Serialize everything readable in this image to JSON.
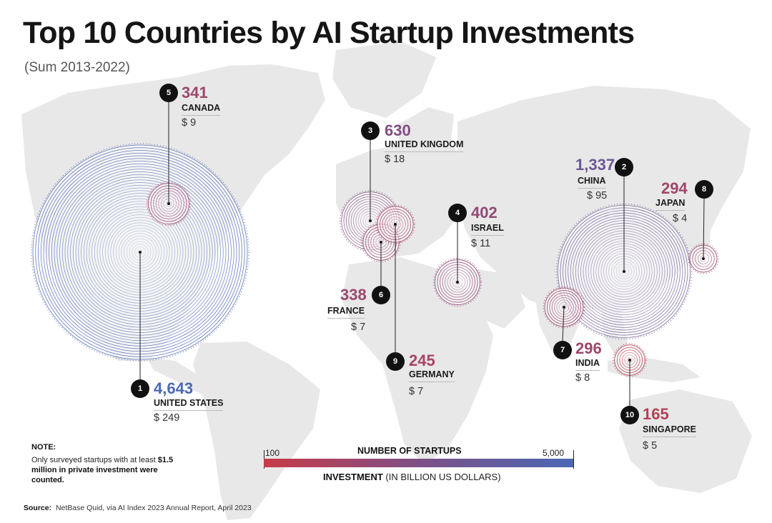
{
  "title": "Top 10 Countries by AI Startup Investments",
  "subtitle": "(Sum 2013-2022)",
  "note": {
    "title": "NOTE:",
    "text_plain": "Only surveyed startups with at least",
    "text_bold": "$1.5 million in private investment were counted."
  },
  "legend": {
    "title": "NUMBER OF STARTUPS",
    "min_label": "100",
    "max_label": "5,000",
    "sub_bold": "INVESTMENT",
    "sub_rest": "(IN BILLION US DOLLARS)",
    "color_min": "#c83b47",
    "color_max": "#4a69b4"
  },
  "source": {
    "label": "Source:",
    "text": "NetBase Quid, via AI Index 2023 Annual Report, April 2023"
  },
  "chart_data": {
    "type": "bubble-map",
    "title": "Top 10 Countries by AI Startup Investments",
    "subtitle": "(Sum 2013-2022)",
    "size_encodes": "investment (billion US dollars)",
    "color_encodes": "number of startups",
    "color_range": [
      100,
      5000
    ],
    "countries": [
      {
        "rank": "1",
        "name": "UNITED STATES",
        "startups": 4643,
        "startups_label": "4,643",
        "investment": 249,
        "investment_label": "$ 249"
      },
      {
        "rank": "2",
        "name": "CHINA",
        "startups": 1337,
        "startups_label": "1,337",
        "investment": 95,
        "investment_label": "$ 95"
      },
      {
        "rank": "3",
        "name": "UNITED KINGDOM",
        "startups": 630,
        "startups_label": "630",
        "investment": 18,
        "investment_label": "$ 18"
      },
      {
        "rank": "4",
        "name": "ISRAEL",
        "startups": 402,
        "startups_label": "402",
        "investment": 11,
        "investment_label": "$ 11"
      },
      {
        "rank": "5",
        "name": "CANADA",
        "startups": 341,
        "startups_label": "341",
        "investment": 9,
        "investment_label": "$ 9"
      },
      {
        "rank": "6",
        "name": "FRANCE",
        "startups": 338,
        "startups_label": "338",
        "investment": 7,
        "investment_label": "$ 7"
      },
      {
        "rank": "7",
        "name": "INDIA",
        "startups": 296,
        "startups_label": "296",
        "investment": 8,
        "investment_label": "$ 8"
      },
      {
        "rank": "8",
        "name": "JAPAN",
        "startups": 294,
        "startups_label": "294",
        "investment": 4,
        "investment_label": "$ 4"
      },
      {
        "rank": "9",
        "name": "GERMANY",
        "startups": 245,
        "startups_label": "245",
        "investment": 7,
        "investment_label": "$ 7"
      },
      {
        "rank": "10",
        "name": "SINGAPORE",
        "startups": 165,
        "startups_label": "165",
        "investment": 5,
        "investment_label": "$ 5"
      }
    ]
  }
}
